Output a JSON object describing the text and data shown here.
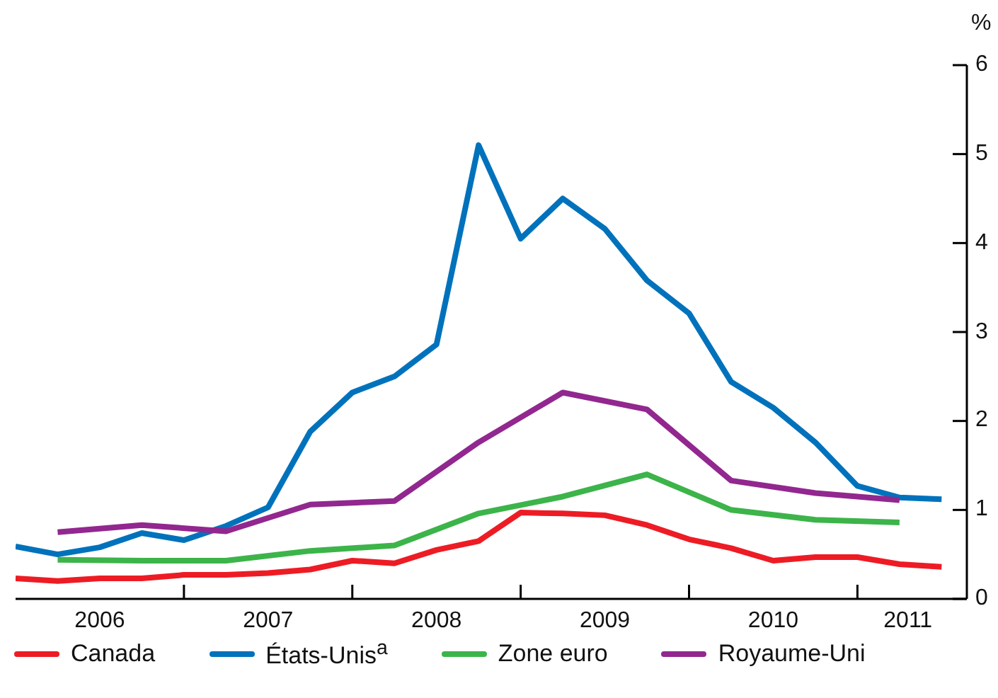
{
  "chart_data": {
    "type": "line",
    "ylabel": "%",
    "xlim": [
      2006,
      2011.65
    ],
    "xticks": [
      {
        "value": 2006.5,
        "label": "2006"
      },
      {
        "value": 2007,
        "label": null
      },
      {
        "value": 2007.5,
        "label": "2007"
      },
      {
        "value": 2008,
        "label": null
      },
      {
        "value": 2008.5,
        "label": "2008"
      },
      {
        "value": 2009,
        "label": null
      },
      {
        "value": 2009.5,
        "label": "2009"
      },
      {
        "value": 2010,
        "label": null
      },
      {
        "value": 2010.5,
        "label": "2010"
      },
      {
        "value": 2011,
        "label": null
      },
      {
        "value": 2011.3,
        "label": "2011"
      }
    ],
    "ylim": [
      0,
      6
    ],
    "yticks": [
      0,
      1,
      2,
      3,
      4,
      5,
      6
    ],
    "grid": false,
    "legend": "bottom",
    "marker": "none",
    "line_style": "solid",
    "series": [
      {
        "name": "Canada",
        "color": "#ed1c24",
        "x": [
          2006,
          2006.25,
          2006.5,
          2006.75,
          2007,
          2007.25,
          2007.5,
          2007.75,
          2008,
          2008.25,
          2008.5,
          2008.75,
          2009,
          2009.25,
          2009.5,
          2009.75,
          2010,
          2010.25,
          2010.5,
          2010.75,
          2011,
          2011.25,
          2011.5
        ],
        "values": [
          0.23,
          0.2,
          0.23,
          0.23,
          0.27,
          0.27,
          0.29,
          0.33,
          0.43,
          0.4,
          0.55,
          0.65,
          0.97,
          0.96,
          0.94,
          0.83,
          0.67,
          0.57,
          0.43,
          0.47,
          0.47,
          0.39,
          0.36
        ]
      },
      {
        "name": "États-Unis$^{a}$",
        "color": "#0072bc",
        "x": [
          2006,
          2006.25,
          2006.5,
          2006.75,
          2007,
          2007.25,
          2007.5,
          2007.75,
          2008,
          2008.25,
          2008.5,
          2008.75,
          2009,
          2009.25,
          2009.5,
          2009.75,
          2010,
          2010.25,
          2010.5,
          2010.75,
          2011,
          2011.25,
          2011.5
        ],
        "values": [
          0.59,
          0.5,
          0.58,
          0.74,
          0.66,
          0.82,
          1.03,
          1.88,
          2.32,
          2.5,
          2.86,
          5.1,
          4.05,
          4.5,
          4.16,
          3.58,
          3.21,
          2.44,
          2.15,
          1.76,
          1.27,
          1.14,
          1.12
        ]
      },
      {
        "name": "Zone euro",
        "color": "#3cb44a",
        "x": [
          2006.25,
          2006.75,
          2007.25,
          2007.75,
          2008.25,
          2008.75,
          2009.25,
          2009.75,
          2010.25,
          2010.75,
          2011.25
        ],
        "values": [
          0.44,
          0.43,
          0.43,
          0.54,
          0.6,
          0.96,
          1.15,
          1.4,
          1.0,
          0.89,
          0.86
        ]
      },
      {
        "name": "Royaume-Uni",
        "color": "#92278f",
        "x": [
          2006.25,
          2006.75,
          2007.25,
          2007.75,
          2008.25,
          2008.75,
          2009.25,
          2009.75,
          2010.25,
          2010.75,
          2011.25
        ],
        "values": [
          0.75,
          0.83,
          0.76,
          1.06,
          1.1,
          1.76,
          2.32,
          2.13,
          1.33,
          1.19,
          1.11
        ]
      }
    ]
  }
}
